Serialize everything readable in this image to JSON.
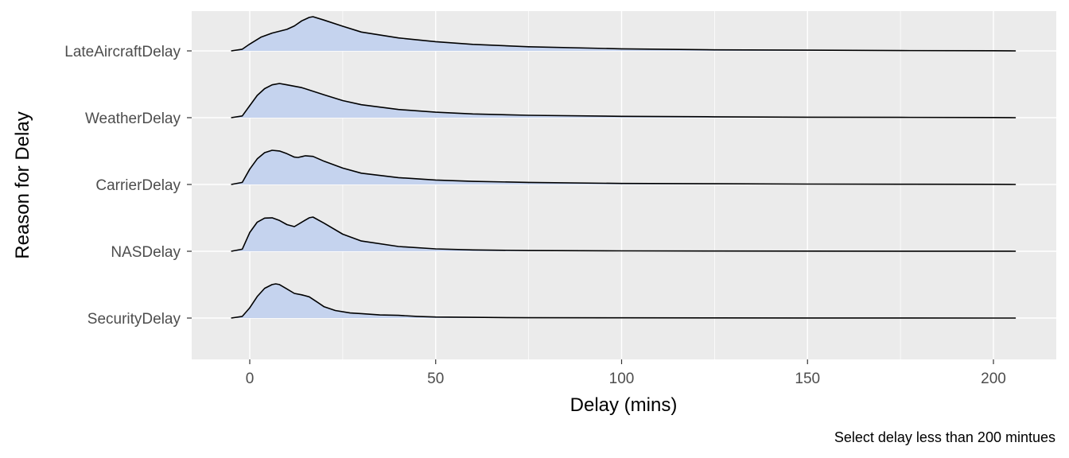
{
  "chart_data": {
    "type": "ridgeline",
    "xlabel": "Delay (mins)",
    "ylabel": "Reason for Delay",
    "caption": "Select delay less than 200 mintues",
    "xlim": [
      -15,
      208
    ],
    "x_ticks": [
      "0",
      "50",
      "100",
      "150",
      "200"
    ],
    "x_tick_values": [
      0,
      50,
      100,
      150,
      200
    ],
    "grid": true,
    "colors": {
      "fill": "#c5d3ee",
      "line": "#000000",
      "panel": "#ebebeb",
      "grid": "#ffffff"
    },
    "series": [
      {
        "name": "LateAircraftDelay",
        "x": [
          -5,
          -2,
          0,
          3,
          6,
          10,
          12,
          14,
          16,
          17,
          20,
          25,
          30,
          40,
          50,
          60,
          75,
          100,
          125,
          150,
          175,
          200,
          206
        ],
        "density": [
          0.0,
          0.05,
          0.2,
          0.4,
          0.52,
          0.63,
          0.73,
          0.88,
          0.98,
          1.0,
          0.9,
          0.72,
          0.55,
          0.38,
          0.27,
          0.19,
          0.12,
          0.06,
          0.03,
          0.02,
          0.01,
          0.005,
          0.0
        ]
      },
      {
        "name": "WeatherDelay",
        "x": [
          -5,
          -2,
          0,
          2,
          4,
          6,
          8,
          10,
          14,
          20,
          25,
          30,
          40,
          50,
          60,
          75,
          100,
          125,
          150,
          175,
          200,
          206
        ],
        "density": [
          0.0,
          0.05,
          0.35,
          0.65,
          0.85,
          0.96,
          1.0,
          0.96,
          0.88,
          0.67,
          0.5,
          0.38,
          0.24,
          0.16,
          0.11,
          0.07,
          0.04,
          0.025,
          0.015,
          0.01,
          0.005,
          0.0
        ]
      },
      {
        "name": "CarrierDelay",
        "x": [
          -5,
          -2,
          0,
          2,
          4,
          6,
          8,
          10,
          12,
          13,
          15,
          17,
          20,
          25,
          30,
          40,
          50,
          60,
          75,
          100,
          125,
          150,
          175,
          200,
          206
        ],
        "density": [
          0.0,
          0.06,
          0.45,
          0.75,
          0.93,
          1.0,
          0.98,
          0.9,
          0.8,
          0.79,
          0.84,
          0.82,
          0.68,
          0.48,
          0.33,
          0.2,
          0.13,
          0.09,
          0.06,
          0.03,
          0.02,
          0.012,
          0.008,
          0.004,
          0.0
        ]
      },
      {
        "name": "NASDelay",
        "x": [
          -5,
          -2,
          0,
          2,
          4,
          6,
          8,
          10,
          12,
          14,
          16,
          17,
          20,
          25,
          30,
          40,
          50,
          60,
          75,
          100,
          125,
          150,
          175,
          200,
          206
        ],
        "density": [
          0.0,
          0.06,
          0.55,
          0.85,
          0.97,
          0.98,
          0.9,
          0.78,
          0.72,
          0.85,
          0.98,
          1.0,
          0.82,
          0.5,
          0.3,
          0.14,
          0.07,
          0.04,
          0.02,
          0.012,
          0.008,
          0.005,
          0.003,
          0.002,
          0.0
        ]
      },
      {
        "name": "SecurityDelay",
        "x": [
          -5,
          -2,
          0,
          2,
          4,
          6,
          7,
          8,
          10,
          12,
          14,
          16,
          18,
          20,
          23,
          27,
          30,
          35,
          40,
          45,
          50,
          60,
          75,
          100,
          125,
          150,
          175,
          200,
          206
        ],
        "density": [
          0.0,
          0.05,
          0.3,
          0.63,
          0.87,
          0.98,
          1.0,
          0.98,
          0.85,
          0.72,
          0.68,
          0.62,
          0.48,
          0.33,
          0.22,
          0.15,
          0.13,
          0.09,
          0.08,
          0.05,
          0.03,
          0.02,
          0.01,
          0.006,
          0.004,
          0.003,
          0.002,
          0.001,
          0.0
        ]
      }
    ]
  }
}
